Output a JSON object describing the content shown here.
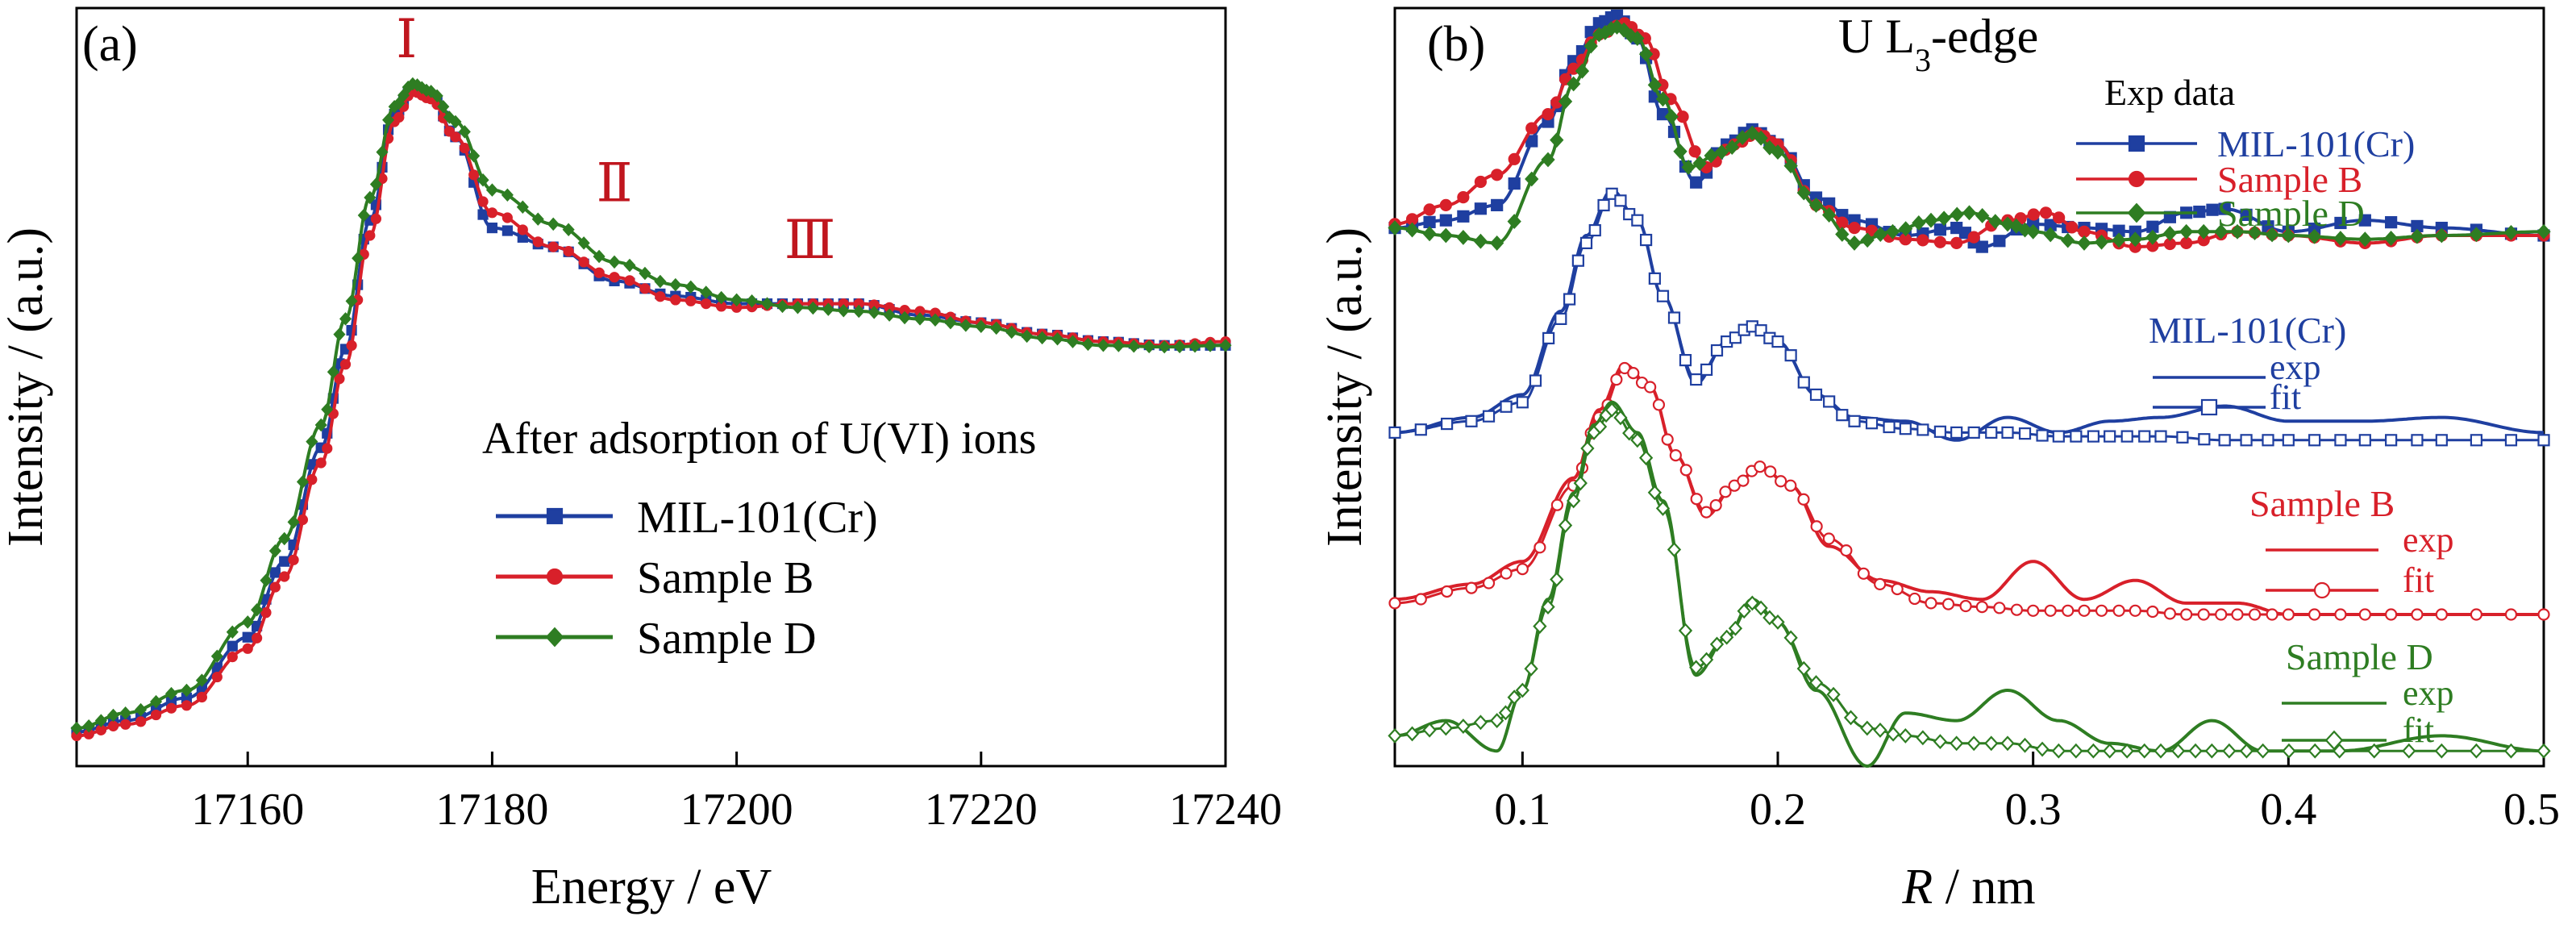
{
  "chart_data": [
    {
      "type": "line",
      "panel_label": "(a)",
      "xlabel": "Energy / eV",
      "ylabel": "Intensity / (a.u.)",
      "xlim": [
        17146,
        17240
      ],
      "ylim": [
        0,
        1
      ],
      "x_ticks": [
        "17160",
        "17180",
        "17200",
        "17220",
        "17240"
      ],
      "x_tick_values": [
        17160,
        17180,
        17200,
        17220,
        17240
      ],
      "legend_title": "After adsorption of U(VI) ions",
      "legend_position": "center-right",
      "annotations": [
        {
          "text": "Ⅰ",
          "x": 17173,
          "y": 0.935
        },
        {
          "text": "Ⅱ",
          "x": 17190,
          "y": 0.745
        },
        {
          "text": "Ⅲ",
          "x": 17206,
          "y": 0.67
        }
      ],
      "series": [
        {
          "name": "MIL-101(Cr)",
          "color": "#1f3fa0",
          "marker": "square",
          "x": [
            17146,
            17150,
            17155,
            17160,
            17163,
            17166,
            17168,
            17170,
            17172,
            17173.5,
            17175,
            17177,
            17180,
            17185,
            17190,
            17195,
            17200,
            17205,
            17210,
            17215,
            17220,
            17225,
            17230,
            17235,
            17240
          ],
          "y": [
            0.045,
            0.06,
            0.09,
            0.17,
            0.27,
            0.42,
            0.55,
            0.72,
            0.86,
            0.895,
            0.885,
            0.83,
            0.71,
            0.685,
            0.64,
            0.62,
            0.61,
            0.61,
            0.61,
            0.595,
            0.585,
            0.57,
            0.56,
            0.555,
            0.555
          ]
        },
        {
          "name": "Sample B",
          "color": "#d8202a",
          "marker": "circle",
          "x": [
            17146,
            17150,
            17155,
            17160,
            17163,
            17166,
            17168,
            17170,
            17172,
            17173.5,
            17175,
            17177,
            17180,
            17185,
            17190,
            17195,
            17200,
            17205,
            17210,
            17215,
            17220,
            17225,
            17230,
            17235,
            17240
          ],
          "y": [
            0.04,
            0.055,
            0.08,
            0.155,
            0.25,
            0.4,
            0.53,
            0.7,
            0.85,
            0.89,
            0.88,
            0.83,
            0.73,
            0.685,
            0.645,
            0.615,
            0.605,
            0.61,
            0.61,
            0.6,
            0.585,
            0.57,
            0.56,
            0.555,
            0.56
          ]
        },
        {
          "name": "Sample D",
          "color": "#2e7d22",
          "marker": "diamond",
          "x": [
            17146,
            17150,
            17155,
            17160,
            17163,
            17166,
            17168,
            17170,
            17172,
            17173.5,
            17175,
            17177,
            17180,
            17185,
            17190,
            17195,
            17200,
            17205,
            17210,
            17215,
            17220,
            17225,
            17230,
            17235,
            17240
          ],
          "y": [
            0.05,
            0.07,
            0.1,
            0.19,
            0.3,
            0.45,
            0.59,
            0.75,
            0.87,
            0.9,
            0.89,
            0.85,
            0.76,
            0.715,
            0.665,
            0.635,
            0.615,
            0.605,
            0.6,
            0.59,
            0.58,
            0.565,
            0.555,
            0.553,
            0.555
          ]
        }
      ]
    },
    {
      "type": "line",
      "panel_label": "(b)",
      "title": "U L₃-edge",
      "xlabel": "R / nm",
      "ylabel": "Intensity / (a.u.)",
      "xlim": [
        0.05,
        0.5
      ],
      "ylim": [
        0,
        1
      ],
      "x_ticks": [
        "0.1",
        "0.2",
        "0.3",
        "0.4",
        "0.5"
      ],
      "x_tick_values": [
        0.1,
        0.2,
        0.3,
        0.4,
        0.5
      ],
      "grid": false,
      "legend_groups": [
        {
          "title": "Exp data",
          "title_color": "#000000",
          "entries": [
            {
              "label": "MIL-101(Cr)",
              "color": "#1f3fa0",
              "marker": "square-filled"
            },
            {
              "label": "Sample B",
              "color": "#d8202a",
              "marker": "circle-filled"
            },
            {
              "label": "Sample D",
              "color": "#2e7d22",
              "marker": "diamond-filled"
            }
          ]
        },
        {
          "title": "MIL-101(Cr)",
          "title_color": "#1f3fa0",
          "entries": [
            {
              "label": "exp",
              "color": "#1f3fa0",
              "marker": "none"
            },
            {
              "label": "fit",
              "color": "#1f3fa0",
              "marker": "square-open"
            }
          ]
        },
        {
          "title": "Sample B",
          "title_color": "#d8202a",
          "entries": [
            {
              "label": "exp",
              "color": "#d8202a",
              "marker": "none"
            },
            {
              "label": "fit",
              "color": "#d8202a",
              "marker": "circle-open"
            }
          ]
        },
        {
          "title": "Sample D",
          "title_color": "#2e7d22",
          "entries": [
            {
              "label": "exp",
              "color": "#2e7d22",
              "marker": "none"
            },
            {
              "label": "fit",
              "color": "#2e7d22",
              "marker": "diamond-open"
            }
          ]
        }
      ],
      "series": [
        {
          "name": "MIL-101(Cr)",
          "group": "Exp data",
          "color": "#1f3fa0",
          "marker": "square-filled",
          "x": [
            0.05,
            0.07,
            0.09,
            0.11,
            0.12,
            0.13,
            0.137,
            0.145,
            0.155,
            0.168,
            0.18,
            0.19,
            0.2,
            0.215,
            0.23,
            0.25,
            0.27,
            0.28,
            0.3,
            0.32,
            0.34,
            0.36,
            0.375,
            0.4,
            0.43,
            0.46,
            0.5
          ],
          "y": [
            0.71,
            0.72,
            0.74,
            0.85,
            0.93,
            0.98,
            0.99,
            0.96,
            0.86,
            0.77,
            0.82,
            0.84,
            0.82,
            0.75,
            0.72,
            0.7,
            0.71,
            0.685,
            0.715,
            0.71,
            0.705,
            0.73,
            0.735,
            0.705,
            0.72,
            0.71,
            0.7
          ]
        },
        {
          "name": "Sample B",
          "group": "Exp data",
          "color": "#d8202a",
          "marker": "circle-filled",
          "x": [
            0.05,
            0.07,
            0.09,
            0.11,
            0.12,
            0.13,
            0.14,
            0.148,
            0.158,
            0.172,
            0.183,
            0.192,
            0.2,
            0.215,
            0.23,
            0.25,
            0.27,
            0.29,
            0.305,
            0.32,
            0.34,
            0.36,
            0.38,
            0.4,
            0.43,
            0.46,
            0.5
          ],
          "y": [
            0.715,
            0.74,
            0.78,
            0.86,
            0.92,
            0.965,
            0.98,
            0.96,
            0.88,
            0.79,
            0.82,
            0.835,
            0.82,
            0.74,
            0.71,
            0.695,
            0.69,
            0.72,
            0.73,
            0.705,
            0.685,
            0.69,
            0.705,
            0.7,
            0.69,
            0.7,
            0.7
          ]
        },
        {
          "name": "Sample D",
          "group": "Exp data",
          "color": "#2e7d22",
          "marker": "diamond-filled",
          "x": [
            0.05,
            0.07,
            0.09,
            0.11,
            0.12,
            0.13,
            0.137,
            0.145,
            0.155,
            0.165,
            0.178,
            0.19,
            0.2,
            0.215,
            0.23,
            0.245,
            0.26,
            0.275,
            0.29,
            0.3,
            0.32,
            0.34,
            0.36,
            0.38,
            0.4,
            0.43,
            0.46,
            0.5
          ],
          "y": [
            0.71,
            0.7,
            0.69,
            0.8,
            0.9,
            0.965,
            0.975,
            0.96,
            0.88,
            0.79,
            0.81,
            0.835,
            0.81,
            0.74,
            0.69,
            0.705,
            0.72,
            0.73,
            0.715,
            0.705,
            0.69,
            0.695,
            0.705,
            0.705,
            0.7,
            0.695,
            0.7,
            0.705
          ]
        },
        {
          "name": "exp",
          "group": "MIL-101(Cr)",
          "color": "#1f3fa0",
          "marker": "none",
          "x": [
            0.05,
            0.08,
            0.1,
            0.115,
            0.125,
            0.135,
            0.145,
            0.155,
            0.168,
            0.18,
            0.19,
            0.2,
            0.215,
            0.23,
            0.25,
            0.27,
            0.29,
            0.31,
            0.33,
            0.35,
            0.375,
            0.4,
            0.43,
            0.46,
            0.5
          ],
          "y": [
            0.44,
            0.46,
            0.49,
            0.6,
            0.7,
            0.76,
            0.72,
            0.62,
            0.505,
            0.56,
            0.58,
            0.56,
            0.49,
            0.46,
            0.455,
            0.43,
            0.46,
            0.44,
            0.455,
            0.46,
            0.475,
            0.455,
            0.455,
            0.46,
            0.44
          ]
        },
        {
          "name": "fit",
          "group": "MIL-101(Cr)",
          "color": "#1f3fa0",
          "marker": "square-open",
          "x": [
            0.05,
            0.08,
            0.1,
            0.115,
            0.125,
            0.135,
            0.145,
            0.155,
            0.168,
            0.18,
            0.19,
            0.2,
            0.215,
            0.23,
            0.25,
            0.27,
            0.29,
            0.31,
            0.33,
            0.35,
            0.375,
            0.4,
            0.43,
            0.46,
            0.5
          ],
          "y": [
            0.44,
            0.455,
            0.48,
            0.59,
            0.69,
            0.755,
            0.72,
            0.62,
            0.51,
            0.56,
            0.58,
            0.56,
            0.49,
            0.455,
            0.445,
            0.44,
            0.44,
            0.435,
            0.435,
            0.435,
            0.43,
            0.43,
            0.43,
            0.43,
            0.43
          ]
        },
        {
          "name": "exp",
          "group": "Sample B",
          "color": "#d8202a",
          "marker": "none",
          "x": [
            0.05,
            0.08,
            0.1,
            0.12,
            0.13,
            0.14,
            0.15,
            0.16,
            0.172,
            0.183,
            0.193,
            0.205,
            0.22,
            0.24,
            0.26,
            0.28,
            0.3,
            0.32,
            0.34,
            0.36,
            0.38,
            0.4,
            0.43,
            0.46,
            0.5
          ],
          "y": [
            0.22,
            0.24,
            0.27,
            0.38,
            0.47,
            0.53,
            0.5,
            0.41,
            0.33,
            0.37,
            0.395,
            0.37,
            0.29,
            0.245,
            0.23,
            0.22,
            0.27,
            0.22,
            0.245,
            0.215,
            0.215,
            0.2,
            0.2,
            0.2,
            0.2
          ]
        },
        {
          "name": "fit",
          "group": "Sample B",
          "color": "#d8202a",
          "marker": "circle-open",
          "x": [
            0.05,
            0.08,
            0.1,
            0.12,
            0.13,
            0.14,
            0.15,
            0.16,
            0.172,
            0.183,
            0.193,
            0.205,
            0.22,
            0.24,
            0.26,
            0.28,
            0.3,
            0.32,
            0.34,
            0.36,
            0.38,
            0.4,
            0.43,
            0.46,
            0.5
          ],
          "y": [
            0.215,
            0.235,
            0.26,
            0.37,
            0.46,
            0.525,
            0.5,
            0.41,
            0.335,
            0.37,
            0.395,
            0.37,
            0.3,
            0.24,
            0.215,
            0.21,
            0.205,
            0.205,
            0.205,
            0.2,
            0.2,
            0.2,
            0.2,
            0.2,
            0.2
          ]
        },
        {
          "name": "exp",
          "group": "Sample D",
          "color": "#2e7d22",
          "marker": "none",
          "x": [
            0.05,
            0.07,
            0.09,
            0.1,
            0.11,
            0.12,
            0.128,
            0.135,
            0.145,
            0.155,
            0.168,
            0.18,
            0.19,
            0.2,
            0.215,
            0.235,
            0.25,
            0.27,
            0.29,
            0.31,
            0.33,
            0.35,
            0.37,
            0.39,
            0.42,
            0.46,
            0.5
          ],
          "y": [
            0.04,
            0.06,
            0.02,
            0.1,
            0.22,
            0.36,
            0.45,
            0.48,
            0.44,
            0.35,
            0.12,
            0.17,
            0.22,
            0.19,
            0.1,
            0.0,
            0.07,
            0.06,
            0.1,
            0.06,
            0.03,
            0.02,
            0.06,
            0.02,
            0.02,
            0.04,
            0.02
          ]
        },
        {
          "name": "fit",
          "group": "Sample D",
          "color": "#2e7d22",
          "marker": "diamond-open",
          "x": [
            0.05,
            0.07,
            0.09,
            0.1,
            0.11,
            0.12,
            0.128,
            0.135,
            0.145,
            0.155,
            0.168,
            0.18,
            0.19,
            0.2,
            0.215,
            0.235,
            0.25,
            0.27,
            0.29,
            0.31,
            0.33,
            0.35,
            0.37,
            0.39,
            0.42,
            0.46,
            0.5
          ],
          "y": [
            0.04,
            0.05,
            0.06,
            0.1,
            0.21,
            0.35,
            0.44,
            0.47,
            0.43,
            0.34,
            0.13,
            0.17,
            0.215,
            0.19,
            0.11,
            0.05,
            0.04,
            0.03,
            0.03,
            0.02,
            0.02,
            0.02,
            0.02,
            0.02,
            0.02,
            0.02,
            0.02
          ]
        }
      ]
    }
  ]
}
